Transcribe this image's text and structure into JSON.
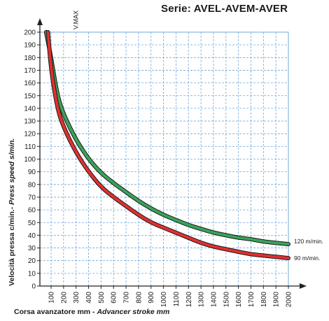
{
  "chart_data": {
    "type": "line",
    "title": "Serie: AVEL-AVEM-AVER",
    "xlabel": "Corsa avanzatore mm - Advancer stroke mm",
    "xlabel_parts": [
      "Corsa avanzatore mm - ",
      "Advancer stroke mm"
    ],
    "ylabel": "Velocità pressa c/min.- Press speed s/min.",
    "ylabel_parts": [
      "Velocità pressa c/min.- ",
      "Press speed s/min."
    ],
    "xlim": [
      50,
      2000
    ],
    "ylim": [
      0,
      200
    ],
    "x_ticks": [
      100,
      200,
      300,
      400,
      500,
      600,
      700,
      800,
      900,
      1000,
      1100,
      1200,
      1300,
      1400,
      1500,
      1600,
      1700,
      1800,
      1900,
      2000
    ],
    "y_ticks": [
      0,
      10,
      20,
      30,
      40,
      50,
      60,
      70,
      80,
      90,
      100,
      110,
      120,
      130,
      140,
      150,
      160,
      170,
      180,
      190,
      200
    ],
    "grid": true,
    "annotation": {
      "text": "V.MAX",
      "x": 300
    },
    "series": [
      {
        "name": "120 m/min.",
        "color": "#3aa35a",
        "x": [
          60,
          100,
          150,
          200,
          300,
          400,
          500,
          600,
          700,
          800,
          900,
          1000,
          1100,
          1200,
          1300,
          1400,
          1500,
          1600,
          1700,
          1800,
          1900,
          2000
        ],
        "y": [
          200,
          180,
          150,
          135,
          115,
          100,
          89,
          81,
          74,
          67,
          61,
          56,
          52,
          48,
          45,
          42,
          40,
          38,
          37,
          35,
          34,
          33
        ]
      },
      {
        "name": "90 m/min.",
        "color": "#e03030",
        "x": [
          75,
          100,
          150,
          200,
          300,
          400,
          500,
          600,
          700,
          800,
          900,
          1000,
          1100,
          1200,
          1300,
          1400,
          1500,
          1600,
          1700,
          1800,
          1900,
          2000
        ],
        "y": [
          200,
          170,
          140,
          125,
          105,
          90,
          78,
          70,
          63,
          56,
          50,
          46,
          42,
          38,
          34,
          31,
          29,
          27,
          25,
          24,
          23,
          22
        ]
      }
    ]
  }
}
